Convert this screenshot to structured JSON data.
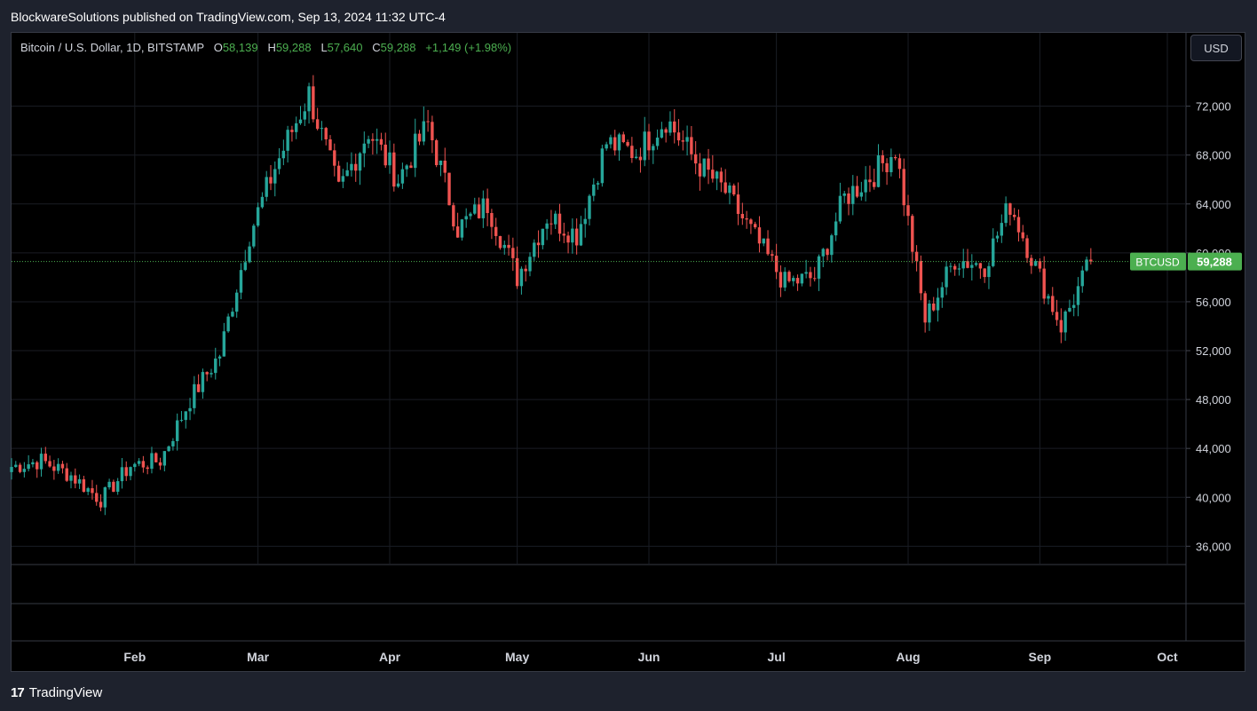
{
  "header": {
    "published": "BlockwareSolutions published on TradingView.com, Sep 13, 2024 11:32 UTC-4"
  },
  "legend": {
    "symbol": "Bitcoin / U.S. Dollar, 1D, BITSTAMP",
    "o_label": "O",
    "o_value": "58,139",
    "h_label": "H",
    "h_value": "59,288",
    "l_label": "L",
    "l_value": "57,640",
    "c_label": "C",
    "c_value": "59,288",
    "change": "+1,149 (+1.98%)"
  },
  "currency_button": "USD",
  "price_tag": {
    "symbol": "BTCUSD",
    "price": "59,288"
  },
  "footer": {
    "brand": "TradingView",
    "logo": "17"
  },
  "colors": {
    "up": "#26a69a",
    "down": "#ef5350",
    "tag": "#4caf50",
    "background": "#000000",
    "grid": "#1a1d24",
    "text": "#d1d4dc"
  },
  "chart_data": {
    "type": "candlestick",
    "title": "Bitcoin / U.S. Dollar, 1D, BITSTAMP",
    "currency": "USD",
    "ylim": [
      34500,
      78000
    ],
    "y_ticks": [
      36000,
      40000,
      44000,
      48000,
      52000,
      56000,
      60000,
      64000,
      68000,
      72000
    ],
    "y_tick_labels": [
      "36,000",
      "40,000",
      "44,000",
      "48,000",
      "52,000",
      "56,000",
      "60,000",
      "64,000",
      "68,000",
      "72,000"
    ],
    "x_ticks": [
      "2024-02-01",
      "2024-03-01",
      "2024-04-01",
      "2024-05-01",
      "2024-06-01",
      "2024-07-01",
      "2024-08-01",
      "2024-09-01",
      "2024-10-01"
    ],
    "x_tick_labels": [
      "Feb",
      "Mar",
      "Apr",
      "May",
      "Jun",
      "Jul",
      "Aug",
      "Sep",
      "Oct"
    ],
    "x_range": [
      "2024-01-03",
      "2024-10-01"
    ],
    "last_price": 59288,
    "grid": true,
    "closes_weekly": [
      {
        "date": "2024-01-03",
        "close": 42500
      },
      {
        "date": "2024-01-10",
        "close": 43000
      },
      {
        "date": "2024-01-17",
        "close": 41800
      },
      {
        "date": "2024-01-24",
        "close": 39800
      },
      {
        "date": "2024-01-31",
        "close": 42600
      },
      {
        "date": "2024-02-07",
        "close": 43000
      },
      {
        "date": "2024-02-14",
        "close": 48000
      },
      {
        "date": "2024-02-21",
        "close": 51700
      },
      {
        "date": "2024-02-28",
        "close": 61500
      },
      {
        "date": "2024-03-05",
        "close": 67000
      },
      {
        "date": "2024-03-13",
        "close": 73000
      },
      {
        "date": "2024-03-20",
        "close": 65000
      },
      {
        "date": "2024-03-27",
        "close": 70000
      },
      {
        "date": "2024-04-03",
        "close": 66000
      },
      {
        "date": "2024-04-10",
        "close": 70500
      },
      {
        "date": "2024-04-17",
        "close": 62000
      },
      {
        "date": "2024-04-24",
        "close": 64000
      },
      {
        "date": "2024-05-01",
        "close": 58000
      },
      {
        "date": "2024-05-08",
        "close": 63000
      },
      {
        "date": "2024-05-15",
        "close": 61500
      },
      {
        "date": "2024-05-22",
        "close": 69000
      },
      {
        "date": "2024-05-29",
        "close": 68200
      },
      {
        "date": "2024-06-05",
        "close": 71000
      },
      {
        "date": "2024-06-12",
        "close": 67500
      },
      {
        "date": "2024-06-19",
        "close": 65000
      },
      {
        "date": "2024-06-26",
        "close": 61200
      },
      {
        "date": "2024-07-03",
        "close": 57500
      },
      {
        "date": "2024-07-10",
        "close": 58000
      },
      {
        "date": "2024-07-17",
        "close": 64500
      },
      {
        "date": "2024-07-24",
        "close": 66500
      },
      {
        "date": "2024-07-29",
        "close": 68500
      },
      {
        "date": "2024-08-05",
        "close": 54500
      },
      {
        "date": "2024-08-12",
        "close": 59500
      },
      {
        "date": "2024-08-19",
        "close": 59000
      },
      {
        "date": "2024-08-25",
        "close": 64000
      },
      {
        "date": "2024-09-01",
        "close": 58000
      },
      {
        "date": "2024-09-06",
        "close": 54000
      },
      {
        "date": "2024-09-13",
        "close": 59288
      }
    ]
  }
}
